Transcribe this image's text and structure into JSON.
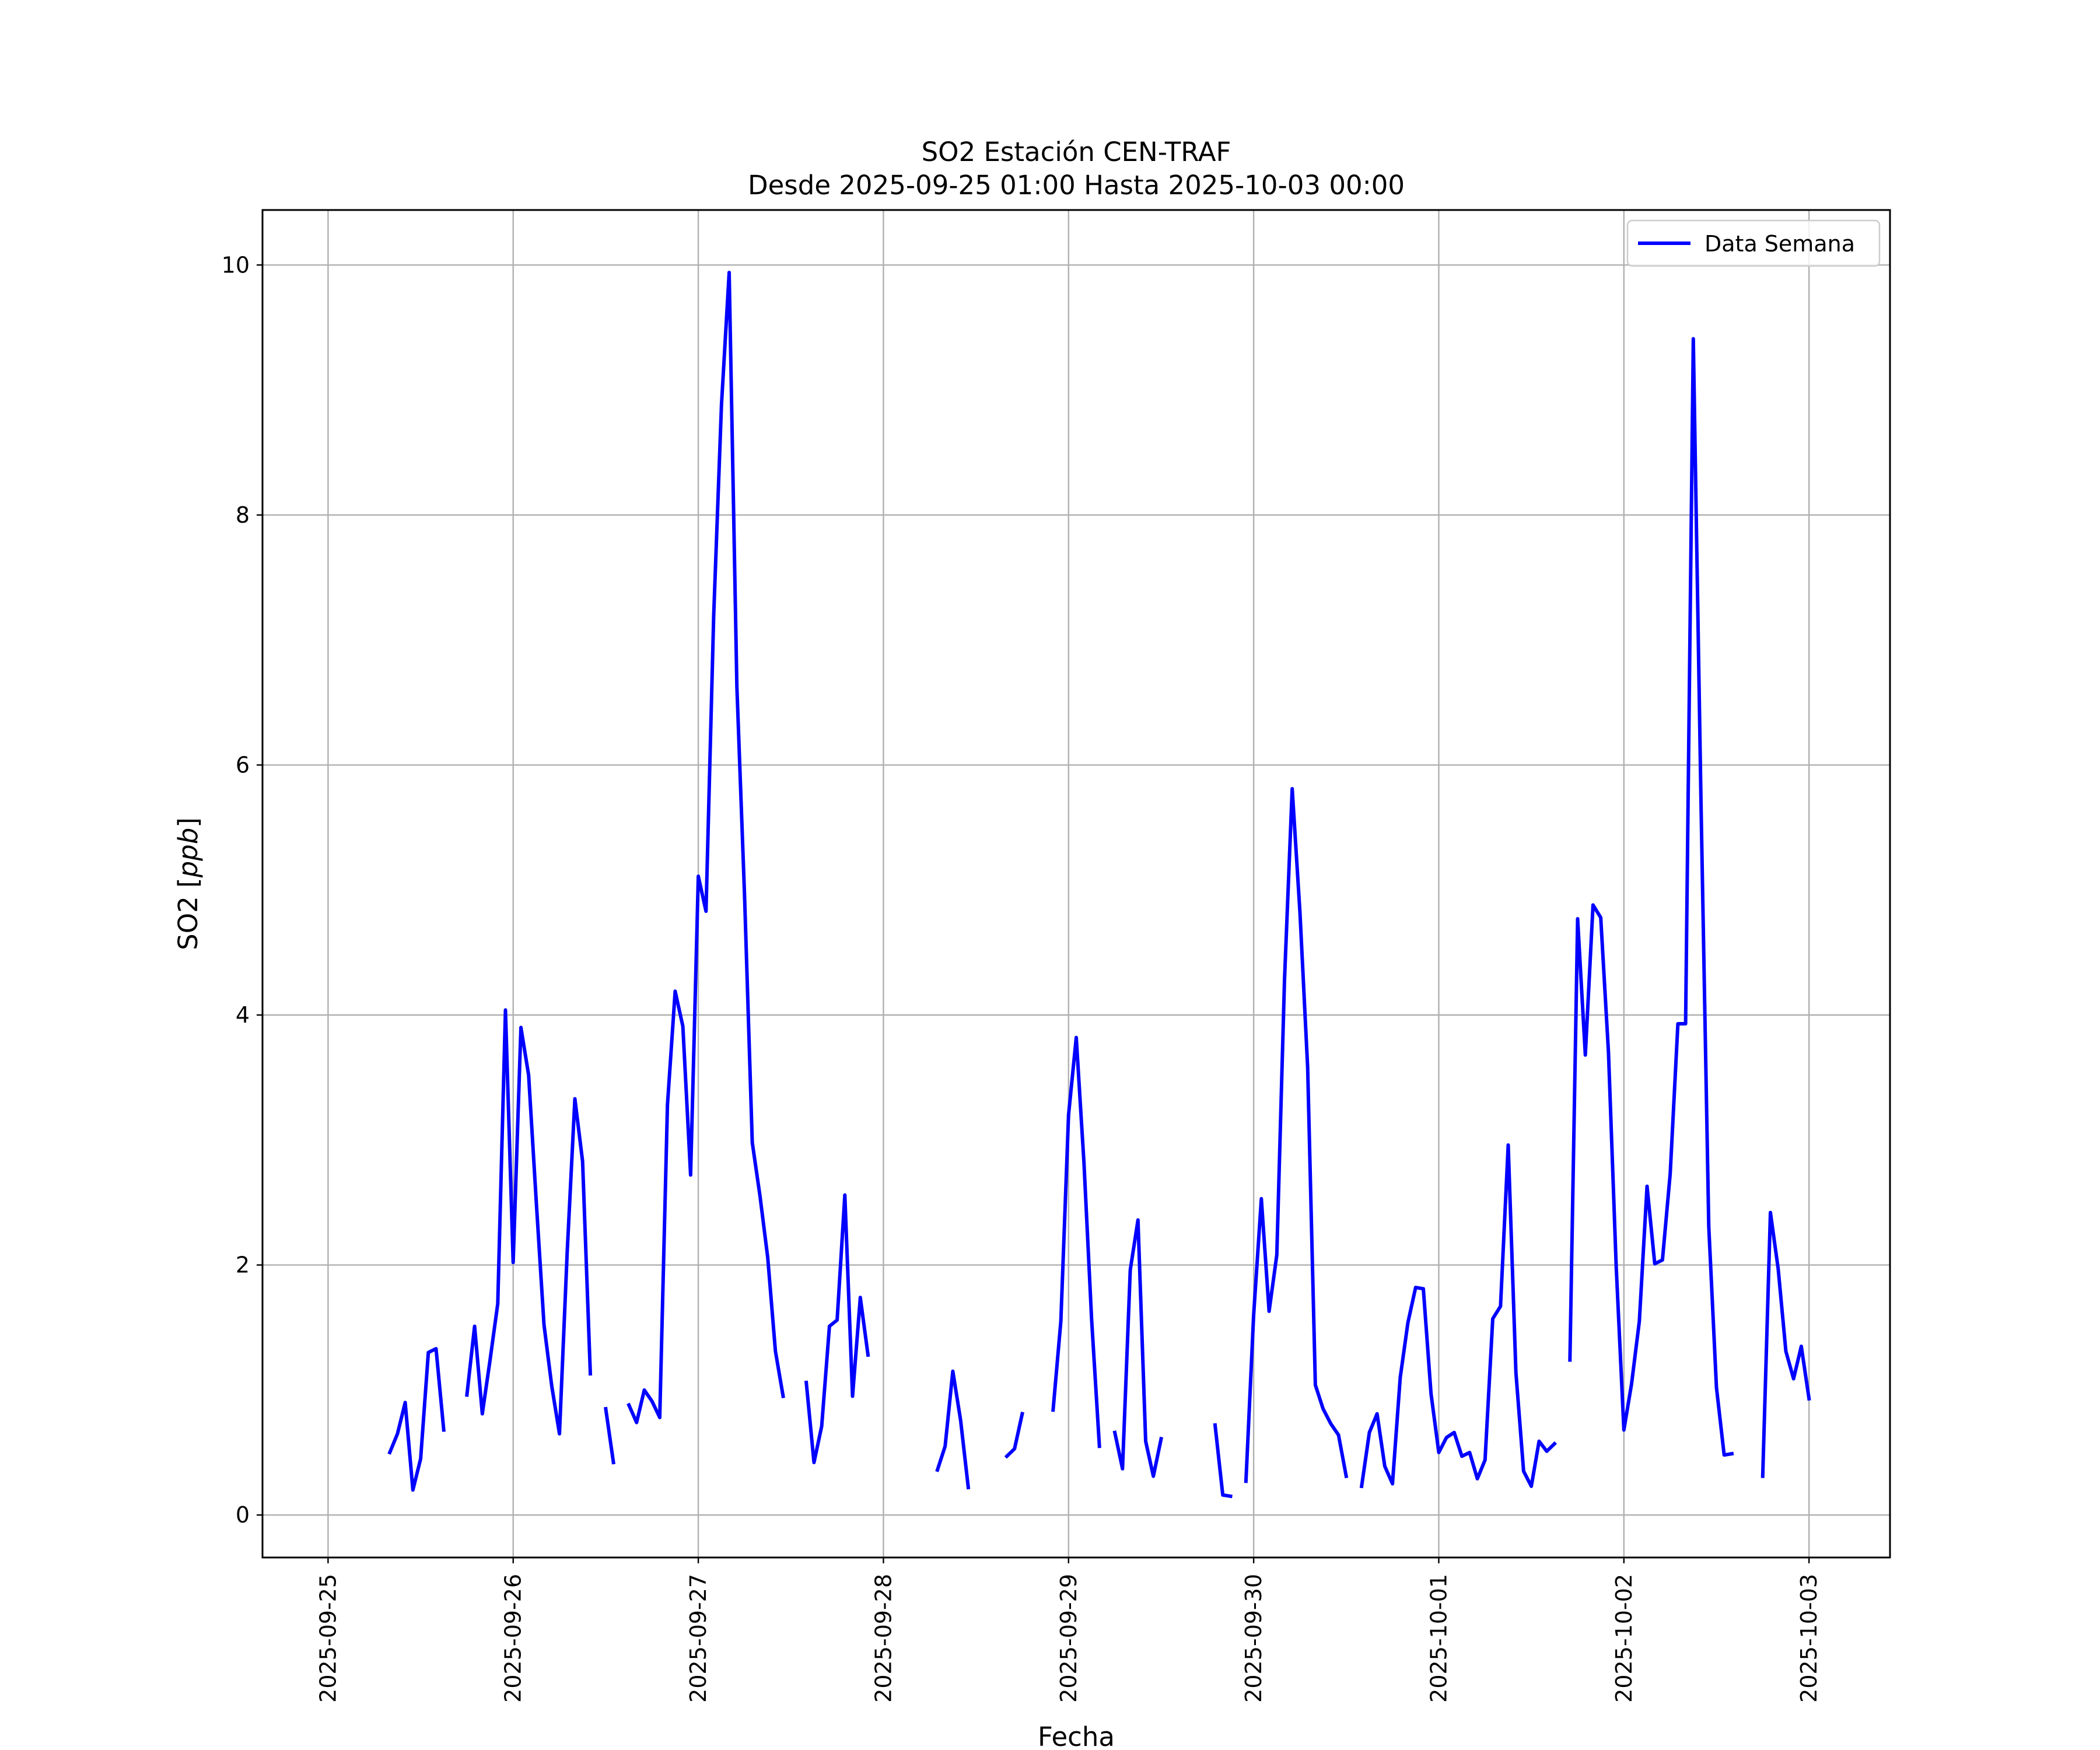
{
  "chart_data": {
    "type": "line",
    "title": [
      "SO2 Estación CEN-TRAF",
      "Desde 2025-09-25 01:00 Hasta 2025-10-03 00:00"
    ],
    "xlabel": "Fecha",
    "ylabel": "SO2 [ppb]",
    "ylabel_prefix": "SO2 [",
    "ylabel_unit": "ppb",
    "ylabel_suffix": "]",
    "grid": true,
    "legend_position": "top-right",
    "xlim": [
      "2025-09-24T15:30",
      "2025-10-03T10:30"
    ],
    "ylim": [
      -0.34,
      10.44
    ],
    "x_ticks": [
      "2025-09-25",
      "2025-09-26",
      "2025-09-27",
      "2025-09-28",
      "2025-09-29",
      "2025-09-30",
      "2025-10-01",
      "2025-10-02",
      "2025-10-03"
    ],
    "y_ticks": [
      0,
      2,
      4,
      6,
      8,
      10
    ],
    "series": [
      {
        "name": "Data Semana",
        "color": "#0000ff",
        "segments": [
          [
            [
              "2025-09-25T08:00",
              0.5
            ],
            [
              "2025-09-25T09:00",
              0.65
            ],
            [
              "2025-09-25T10:00",
              0.9
            ],
            [
              "2025-09-25T11:00",
              0.2
            ],
            [
              "2025-09-25T12:00",
              0.45
            ],
            [
              "2025-09-25T13:00",
              1.3
            ],
            [
              "2025-09-25T14:00",
              1.33
            ],
            [
              "2025-09-25T15:00",
              0.68
            ]
          ],
          [
            [
              "2025-09-25T18:00",
              0.96
            ],
            [
              "2025-09-25T19:00",
              1.51
            ],
            [
              "2025-09-25T20:00",
              0.81
            ],
            [
              "2025-09-25T21:00",
              1.24
            ],
            [
              "2025-09-25T22:00",
              1.69
            ],
            [
              "2025-09-25T23:00",
              4.04
            ],
            [
              "2025-09-26T00:00",
              2.02
            ],
            [
              "2025-09-26T01:00",
              3.9
            ],
            [
              "2025-09-26T02:00",
              3.52
            ],
            [
              "2025-09-26T03:00",
              2.5
            ],
            [
              "2025-09-26T04:00",
              1.52
            ],
            [
              "2025-09-26T05:00",
              1.03
            ],
            [
              "2025-09-26T06:00",
              0.65
            ],
            [
              "2025-09-26T07:00",
              2.1
            ],
            [
              "2025-09-26T08:00",
              3.33
            ],
            [
              "2025-09-26T09:00",
              2.83
            ],
            [
              "2025-09-26T10:00",
              1.13
            ]
          ],
          [
            [
              "2025-09-26T12:00",
              0.85
            ],
            [
              "2025-09-26T13:00",
              0.42
            ]
          ],
          [
            [
              "2025-09-26T15:00",
              0.88
            ],
            [
              "2025-09-26T16:00",
              0.74
            ],
            [
              "2025-09-26T17:00",
              1.0
            ],
            [
              "2025-09-26T18:00",
              0.91
            ],
            [
              "2025-09-26T19:00",
              0.78
            ],
            [
              "2025-09-26T20:00",
              3.28
            ],
            [
              "2025-09-26T21:00",
              4.19
            ],
            [
              "2025-09-26T22:00",
              3.91
            ],
            [
              "2025-09-26T23:00",
              2.72
            ],
            [
              "2025-09-27T00:00",
              5.11
            ],
            [
              "2025-09-27T01:00",
              4.83
            ],
            [
              "2025-09-27T02:00",
              7.2
            ],
            [
              "2025-09-27T03:00",
              8.88
            ],
            [
              "2025-09-27T04:00",
              9.94
            ],
            [
              "2025-09-27T05:00",
              6.63
            ],
            [
              "2025-09-27T06:00",
              4.95
            ],
            [
              "2025-09-27T07:00",
              2.98
            ],
            [
              "2025-09-27T08:00",
              2.55
            ],
            [
              "2025-09-27T09:00",
              2.06
            ],
            [
              "2025-09-27T10:00",
              1.31
            ],
            [
              "2025-09-27T11:00",
              0.95
            ]
          ],
          [
            [
              "2025-09-27T14:00",
              1.06
            ],
            [
              "2025-09-27T15:00",
              0.42
            ],
            [
              "2025-09-27T16:00",
              0.71
            ],
            [
              "2025-09-27T17:00",
              1.51
            ],
            [
              "2025-09-27T18:00",
              1.56
            ],
            [
              "2025-09-27T19:00",
              2.56
            ],
            [
              "2025-09-27T20:00",
              0.95
            ],
            [
              "2025-09-27T21:00",
              1.74
            ],
            [
              "2025-09-27T22:00",
              1.28
            ]
          ],
          [
            [
              "2025-09-28T07:00",
              0.36
            ],
            [
              "2025-09-28T08:00",
              0.55
            ],
            [
              "2025-09-28T09:00",
              1.15
            ],
            [
              "2025-09-28T10:00",
              0.76
            ],
            [
              "2025-09-28T11:00",
              0.22
            ]
          ],
          [
            [
              "2025-09-28T16:00",
              0.47
            ],
            [
              "2025-09-28T17:00",
              0.53
            ],
            [
              "2025-09-28T18:00",
              0.81
            ]
          ],
          [
            [
              "2025-09-28T22:00",
              0.84
            ],
            [
              "2025-09-28T23:00",
              1.55
            ],
            [
              "2025-09-29T00:00",
              3.2
            ],
            [
              "2025-09-29T01:00",
              3.82
            ],
            [
              "2025-09-29T02:00",
              2.82
            ],
            [
              "2025-09-29T03:00",
              1.56
            ],
            [
              "2025-09-29T04:00",
              0.55
            ]
          ],
          [
            [
              "2025-09-29T06:00",
              0.66
            ],
            [
              "2025-09-29T07:00",
              0.37
            ],
            [
              "2025-09-29T08:00",
              1.96
            ],
            [
              "2025-09-29T09:00",
              2.36
            ],
            [
              "2025-09-29T10:00",
              0.59
            ],
            [
              "2025-09-29T11:00",
              0.31
            ],
            [
              "2025-09-29T12:00",
              0.61
            ]
          ],
          [
            [
              "2025-09-29T19:00",
              0.72
            ],
            [
              "2025-09-29T20:00",
              0.16
            ],
            [
              "2025-09-29T21:00",
              0.15
            ]
          ],
          [
            [
              "2025-09-29T23:00",
              0.27
            ],
            [
              "2025-09-30T00:00",
              1.6
            ],
            [
              "2025-09-30T01:00",
              2.53
            ],
            [
              "2025-09-30T02:00",
              1.63
            ],
            [
              "2025-09-30T03:00",
              2.08
            ],
            [
              "2025-09-30T04:00",
              4.28
            ],
            [
              "2025-09-30T05:00",
              5.81
            ],
            [
              "2025-09-30T06:00",
              4.82
            ],
            [
              "2025-09-30T07:00",
              3.58
            ],
            [
              "2025-09-30T08:00",
              1.04
            ],
            [
              "2025-09-30T09:00",
              0.85
            ],
            [
              "2025-09-30T10:00",
              0.73
            ],
            [
              "2025-09-30T11:00",
              0.64
            ],
            [
              "2025-09-30T12:00",
              0.31
            ]
          ],
          [
            [
              "2025-09-30T14:00",
              0.23
            ],
            [
              "2025-09-30T15:00",
              0.66
            ],
            [
              "2025-09-30T16:00",
              0.81
            ],
            [
              "2025-09-30T17:00",
              0.39
            ],
            [
              "2025-09-30T18:00",
              0.25
            ],
            [
              "2025-09-30T19:00",
              1.1
            ],
            [
              "2025-09-30T20:00",
              1.54
            ],
            [
              "2025-09-30T21:00",
              1.82
            ],
            [
              "2025-09-30T22:00",
              1.81
            ],
            [
              "2025-09-30T23:00",
              0.97
            ],
            [
              "2025-10-01T00:00",
              0.5
            ],
            [
              "2025-10-01T01:00",
              0.62
            ],
            [
              "2025-10-01T02:00",
              0.66
            ],
            [
              "2025-10-01T03:00",
              0.47
            ],
            [
              "2025-10-01T04:00",
              0.5
            ],
            [
              "2025-10-01T05:00",
              0.29
            ],
            [
              "2025-10-01T06:00",
              0.44
            ],
            [
              "2025-10-01T07:00",
              1.57
            ],
            [
              "2025-10-01T08:00",
              1.67
            ],
            [
              "2025-10-01T09:00",
              2.96
            ],
            [
              "2025-10-01T10:00",
              1.14
            ],
            [
              "2025-10-01T11:00",
              0.35
            ],
            [
              "2025-10-01T12:00",
              0.23
            ],
            [
              "2025-10-01T13:00",
              0.59
            ],
            [
              "2025-10-01T14:00",
              0.51
            ],
            [
              "2025-10-01T15:00",
              0.57
            ]
          ],
          [
            [
              "2025-10-01T17:00",
              1.24
            ],
            [
              "2025-10-01T18:00",
              4.77
            ],
            [
              "2025-10-01T19:00",
              3.68
            ],
            [
              "2025-10-01T20:00",
              4.88
            ],
            [
              "2025-10-01T21:00",
              4.78
            ],
            [
              "2025-10-01T22:00",
              3.7
            ],
            [
              "2025-10-01T23:00",
              1.99
            ],
            [
              "2025-10-02T00:00",
              0.68
            ],
            [
              "2025-10-02T01:00",
              1.05
            ],
            [
              "2025-10-02T02:00",
              1.55
            ],
            [
              "2025-10-02T03:00",
              2.63
            ],
            [
              "2025-10-02T04:00",
              2.01
            ],
            [
              "2025-10-02T05:00",
              2.04
            ],
            [
              "2025-10-02T06:00",
              2.73
            ],
            [
              "2025-10-02T07:00",
              3.93
            ],
            [
              "2025-10-02T08:00",
              3.93
            ],
            [
              "2025-10-02T09:00",
              9.41
            ],
            [
              "2025-10-02T10:00",
              5.7
            ],
            [
              "2025-10-02T11:00",
              2.31
            ],
            [
              "2025-10-02T12:00",
              1.02
            ],
            [
              "2025-10-02T13:00",
              0.48
            ],
            [
              "2025-10-02T14:00",
              0.49
            ]
          ],
          [
            [
              "2025-10-02T18:00",
              0.31
            ],
            [
              "2025-10-02T19:00",
              2.42
            ],
            [
              "2025-10-02T20:00",
              1.97
            ],
            [
              "2025-10-02T21:00",
              1.31
            ],
            [
              "2025-10-02T22:00",
              1.09
            ],
            [
              "2025-10-02T23:00",
              1.35
            ],
            [
              "2025-10-03T00:00",
              0.93
            ]
          ]
        ]
      }
    ]
  }
}
